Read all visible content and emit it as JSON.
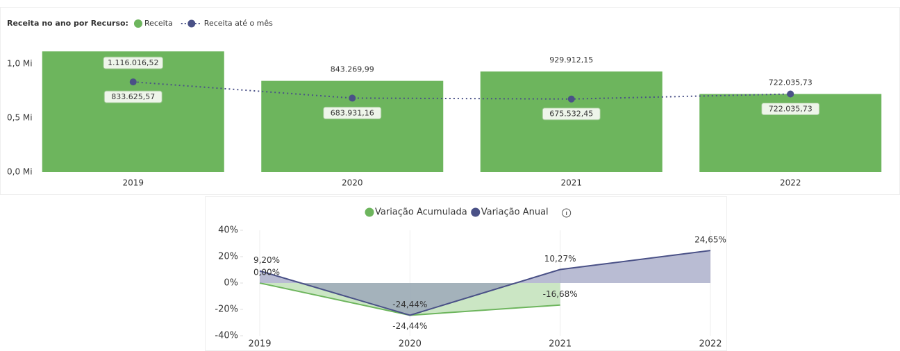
{
  "chart_data": [
    {
      "type": "bar_line",
      "title": "Receita no ano por Recurso:",
      "categories": [
        "2019",
        "2020",
        "2021",
        "2022"
      ],
      "series": [
        {
          "name": "Receita",
          "color": "#6db55d",
          "values": [
            1116016.52,
            843269.99,
            929912.15,
            722035.73
          ],
          "value_labels": [
            "1.116.016,52",
            "843.269,99",
            "929.912,15",
            "722.035,73"
          ]
        },
        {
          "name": "Receita até o mês",
          "color": "#4a5187",
          "values": [
            833625.57,
            683931.16,
            675532.45,
            722035.73
          ],
          "value_labels": [
            "833.625,57",
            "683.931,16",
            "675.532,45",
            "722.035,73"
          ]
        }
      ],
      "ylim": [
        0,
        1200000
      ],
      "yticks": [
        {
          "value": 0,
          "label": "0,0 Mi"
        },
        {
          "value": 500000,
          "label": "0,5 Mi"
        },
        {
          "value": 1000000,
          "label": "1,0 Mi"
        }
      ]
    },
    {
      "type": "area",
      "categories": [
        "2019",
        "2020",
        "2021",
        "2022"
      ],
      "series": [
        {
          "name": "Variação Acumulada",
          "color": "#6db55d",
          "values": [
            0,
            -24.44,
            -16.68,
            null
          ],
          "value_labels": [
            "0,00%",
            "-24,44%",
            "-16,68%",
            null
          ]
        },
        {
          "name": "Variação Anual",
          "color": "#4a5187",
          "values": [
            9.2,
            -24.44,
            10.27,
            24.65
          ],
          "value_labels": [
            "9,20%",
            "-24,44%",
            "10,27%",
            "24,65%"
          ]
        }
      ],
      "ylim": [
        -40,
        40
      ],
      "yticks": [
        {
          "value": 40,
          "label": "40%"
        },
        {
          "value": 20,
          "label": "20%"
        },
        {
          "value": 0,
          "label": "0%"
        },
        {
          "value": -20,
          "label": "-20%"
        },
        {
          "value": -40,
          "label": "-40%"
        }
      ]
    }
  ]
}
